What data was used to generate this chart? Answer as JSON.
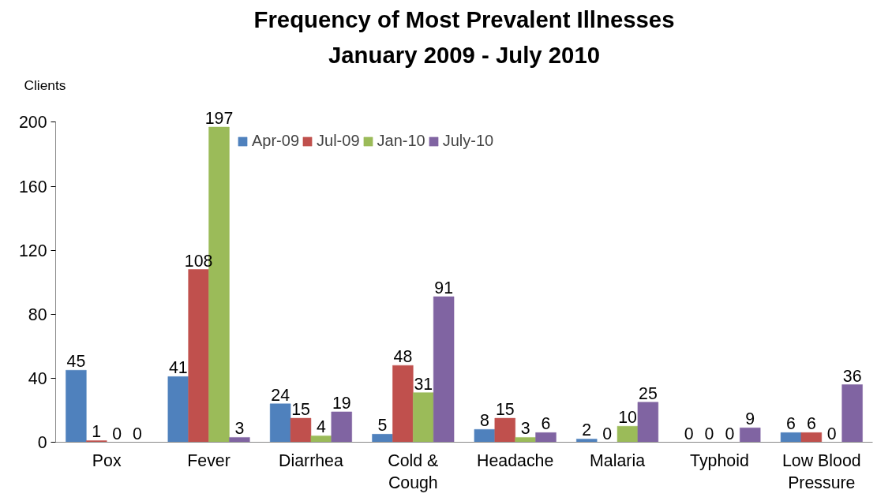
{
  "chart_data": {
    "type": "bar",
    "title": "Frequency of Most Prevalent Illnesses",
    "subtitle": "January 2009 - July 2010",
    "ylabel": "Clients",
    "categories": [
      "Pox",
      "Fever",
      "Diarrhea",
      "Cold & Cough",
      "Headache",
      "Malaria",
      "Typhoid",
      "Low Blood Pressure"
    ],
    "series": [
      {
        "name": "Apr-09",
        "color": "#4f81bd",
        "values": [
          45,
          41,
          24,
          5,
          8,
          2,
          0,
          6
        ]
      },
      {
        "name": "Jul-09",
        "color": "#c0504d",
        "values": [
          1,
          108,
          15,
          48,
          15,
          0,
          0,
          6
        ]
      },
      {
        "name": "Jan-10",
        "color": "#9bbb59",
        "values": [
          0,
          197,
          4,
          31,
          3,
          10,
          0,
          0
        ]
      },
      {
        "name": "July-10",
        "color": "#8064a2",
        "values": [
          0,
          3,
          19,
          91,
          6,
          25,
          9,
          36
        ]
      }
    ],
    "ylim": [
      0,
      200
    ],
    "yticks": [
      0,
      40,
      80,
      120,
      160,
      200
    ],
    "grid": false,
    "legend": "top",
    "data_labels": true
  }
}
